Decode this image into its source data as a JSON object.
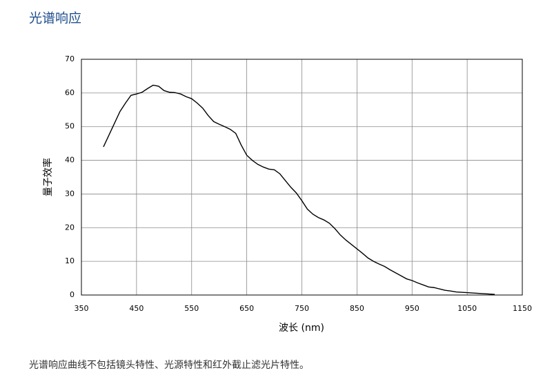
{
  "chart_data": {
    "type": "line",
    "title": "光谱响应",
    "caption": "光谱响应曲线不包括镜头特性、光源特性和红外截止滤光片特性。",
    "xlabel": "波长 (nm)",
    "ylabel": "量子效率",
    "x": [
      390,
      400,
      410,
      420,
      430,
      440,
      450,
      460,
      470,
      480,
      490,
      500,
      510,
      520,
      530,
      540,
      550,
      560,
      570,
      580,
      590,
      600,
      610,
      620,
      630,
      640,
      650,
      660,
      670,
      680,
      690,
      700,
      710,
      720,
      730,
      740,
      750,
      760,
      770,
      780,
      790,
      800,
      810,
      820,
      830,
      840,
      850,
      860,
      870,
      880,
      890,
      900,
      910,
      920,
      930,
      940,
      950,
      960,
      970,
      980,
      990,
      1000,
      1010,
      1020,
      1030,
      1040,
      1050,
      1060,
      1070,
      1080,
      1090,
      1100
    ],
    "values": [
      44,
      47.5,
      51,
      54.5,
      57,
      59.3,
      59.7,
      60.2,
      61.3,
      62.3,
      62,
      60.7,
      60.2,
      60.1,
      59.7,
      58.9,
      58.3,
      57,
      55.5,
      53.3,
      51.5,
      50.7,
      50,
      49.2,
      48,
      44.5,
      41.5,
      40,
      38.8,
      38,
      37.4,
      37.2,
      36,
      34,
      32,
      30.3,
      28,
      25.5,
      24,
      23,
      22.3,
      21.3,
      19.7,
      17.8,
      16.3,
      15,
      13.7,
      12.4,
      11,
      10,
      9.2,
      8.5,
      7.5,
      6.6,
      5.7,
      4.8,
      4.3,
      3.6,
      3,
      2.4,
      2.2,
      1.8,
      1.4,
      1.2,
      0.9,
      0.8,
      0.7,
      0.6,
      0.5,
      0.4,
      0.3,
      0.2
    ],
    "color": "#000000",
    "xlim": [
      350,
      1150
    ],
    "xticks": [
      350,
      450,
      550,
      650,
      750,
      850,
      950,
      1050,
      1150
    ],
    "ylim": [
      0,
      70
    ],
    "yticks": [
      0,
      10,
      20,
      30,
      40,
      50,
      60,
      70
    ],
    "grid": true
  }
}
